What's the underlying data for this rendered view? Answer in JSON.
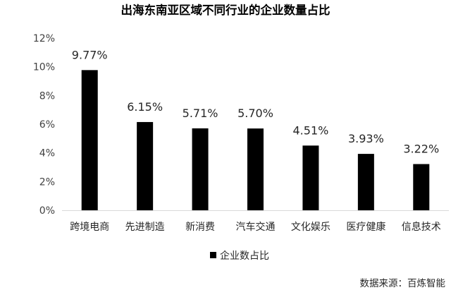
{
  "chart_data": {
    "type": "bar",
    "title": "出海东南亚区域不同行业的企业数量占比",
    "categories": [
      "跨境电商",
      "先进制造",
      "新消费",
      "汽车交通",
      "文化娱乐",
      "医疗健康",
      "信息技术"
    ],
    "series": [
      {
        "name": "企业数占比",
        "values": [
          9.77,
          6.15,
          5.71,
          5.7,
          4.51,
          3.93,
          3.22
        ],
        "color": "#000000"
      }
    ],
    "data_labels": [
      "9.77%",
      "6.15%",
      "5.71%",
      "5.70%",
      "4.51%",
      "3.93%",
      "3.22%"
    ],
    "ylim": [
      0,
      12
    ],
    "yticks": [
      0,
      2,
      4,
      6,
      8,
      10,
      12
    ],
    "ytick_labels": [
      "0%",
      "2%",
      "4%",
      "6%",
      "8%",
      "10%",
      "12%"
    ],
    "grid": false,
    "legend_position": "bottom"
  },
  "source": "数据来源：百炼智能"
}
